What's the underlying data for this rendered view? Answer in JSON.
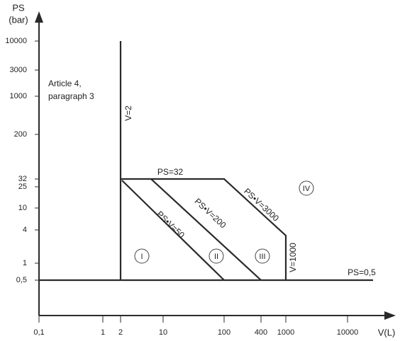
{
  "y_axis": {
    "title": "PS",
    "unit": "(bar)",
    "ticks": [
      "10000",
      "3000",
      "1000",
      "200",
      "32",
      "25",
      "10",
      "4",
      "1",
      "0,5"
    ]
  },
  "x_axis": {
    "title": "V(L)",
    "ticks": [
      "0,1",
      "1",
      "2",
      "10",
      "100",
      "400",
      "1000",
      "10000"
    ]
  },
  "note": [
    "Article 4,",
    "paragraph 3"
  ],
  "lines": [
    "V=2",
    "PS=32",
    "PS•V=3000",
    "PS•V=50",
    "PS•V=200",
    "V=1000",
    "PS=0,5"
  ],
  "regions": [
    "I",
    "II",
    "III",
    "IV"
  ]
}
